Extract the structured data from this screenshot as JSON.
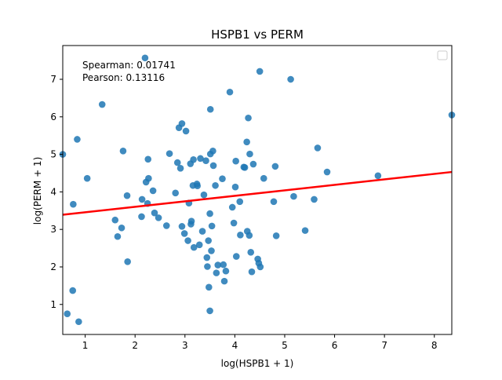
{
  "chart_data": {
    "type": "scatter",
    "title": "HSPB1 vs PERM",
    "xlabel": "log(HSPB1 + 1)",
    "ylabel": "log(PERM + 1)",
    "xlim": [
      0.55,
      8.35
    ],
    "ylim": [
      0.2,
      7.9
    ],
    "xticks": [
      1,
      2,
      3,
      4,
      5,
      6,
      7,
      8
    ],
    "yticks": [
      1,
      2,
      3,
      4,
      5,
      6,
      7
    ],
    "grid": false,
    "legend": "top-right, empty",
    "point_color": "#1f77b4",
    "fit_line_color": "#ff0000",
    "annotations": [
      "Spearman: 0.01741",
      "Pearson: 0.13116"
    ],
    "regression": {
      "x": [
        0.55,
        8.35
      ],
      "y": [
        3.39,
        4.53
      ]
    },
    "points": [
      {
        "x": 0.55,
        "y": 5.0
      },
      {
        "x": 0.64,
        "y": 0.75
      },
      {
        "x": 0.75,
        "y": 1.37
      },
      {
        "x": 0.76,
        "y": 3.67
      },
      {
        "x": 0.84,
        "y": 5.4
      },
      {
        "x": 0.87,
        "y": 0.54
      },
      {
        "x": 1.04,
        "y": 4.36
      },
      {
        "x": 1.34,
        "y": 6.33
      },
      {
        "x": 1.6,
        "y": 3.25
      },
      {
        "x": 1.65,
        "y": 2.81
      },
      {
        "x": 1.73,
        "y": 3.04
      },
      {
        "x": 1.76,
        "y": 5.09
      },
      {
        "x": 1.84,
        "y": 3.9
      },
      {
        "x": 1.85,
        "y": 2.14
      },
      {
        "x": 2.13,
        "y": 3.34
      },
      {
        "x": 2.14,
        "y": 3.8
      },
      {
        "x": 2.2,
        "y": 7.57
      },
      {
        "x": 2.22,
        "y": 4.26
      },
      {
        "x": 2.25,
        "y": 3.69
      },
      {
        "x": 2.26,
        "y": 4.87
      },
      {
        "x": 2.27,
        "y": 4.36
      },
      {
        "x": 2.36,
        "y": 4.03
      },
      {
        "x": 2.39,
        "y": 3.44
      },
      {
        "x": 2.47,
        "y": 3.31
      },
      {
        "x": 2.63,
        "y": 3.1
      },
      {
        "x": 2.69,
        "y": 5.02
      },
      {
        "x": 2.81,
        "y": 3.97
      },
      {
        "x": 2.85,
        "y": 4.78
      },
      {
        "x": 2.88,
        "y": 5.71
      },
      {
        "x": 2.91,
        "y": 4.63
      },
      {
        "x": 2.94,
        "y": 5.82
      },
      {
        "x": 2.94,
        "y": 3.08
      },
      {
        "x": 2.99,
        "y": 2.89
      },
      {
        "x": 3.02,
        "y": 5.62
      },
      {
        "x": 3.06,
        "y": 2.7
      },
      {
        "x": 3.08,
        "y": 3.7
      },
      {
        "x": 3.11,
        "y": 4.75
      },
      {
        "x": 3.12,
        "y": 3.14
      },
      {
        "x": 3.13,
        "y": 3.22
      },
      {
        "x": 3.16,
        "y": 4.17
      },
      {
        "x": 3.17,
        "y": 4.86
      },
      {
        "x": 3.18,
        "y": 2.52
      },
      {
        "x": 3.24,
        "y": 4.21
      },
      {
        "x": 3.25,
        "y": 4.16
      },
      {
        "x": 3.29,
        "y": 2.59
      },
      {
        "x": 3.31,
        "y": 4.89
      },
      {
        "x": 3.35,
        "y": 2.95
      },
      {
        "x": 3.38,
        "y": 3.92
      },
      {
        "x": 3.42,
        "y": 4.83
      },
      {
        "x": 3.44,
        "y": 2.25
      },
      {
        "x": 3.45,
        "y": 2.01
      },
      {
        "x": 3.47,
        "y": 2.7
      },
      {
        "x": 3.48,
        "y": 1.46
      },
      {
        "x": 3.5,
        "y": 0.83
      },
      {
        "x": 3.5,
        "y": 3.42
      },
      {
        "x": 3.51,
        "y": 6.2
      },
      {
        "x": 3.51,
        "y": 5.01
      },
      {
        "x": 3.53,
        "y": 2.43
      },
      {
        "x": 3.54,
        "y": 3.09
      },
      {
        "x": 3.56,
        "y": 5.09
      },
      {
        "x": 3.57,
        "y": 4.7
      },
      {
        "x": 3.61,
        "y": 4.17
      },
      {
        "x": 3.63,
        "y": 1.84
      },
      {
        "x": 3.66,
        "y": 2.05
      },
      {
        "x": 3.75,
        "y": 4.35
      },
      {
        "x": 3.77,
        "y": 2.06
      },
      {
        "x": 3.79,
        "y": 1.62
      },
      {
        "x": 3.82,
        "y": 1.89
      },
      {
        "x": 3.9,
        "y": 6.66
      },
      {
        "x": 3.95,
        "y": 3.59
      },
      {
        "x": 3.98,
        "y": 3.17
      },
      {
        "x": 4.01,
        "y": 4.13
      },
      {
        "x": 4.02,
        "y": 4.82
      },
      {
        "x": 4.03,
        "y": 2.28
      },
      {
        "x": 4.1,
        "y": 3.74
      },
      {
        "x": 4.11,
        "y": 2.85
      },
      {
        "x": 4.18,
        "y": 4.66
      },
      {
        "x": 4.2,
        "y": 4.65
      },
      {
        "x": 4.24,
        "y": 5.33
      },
      {
        "x": 4.25,
        "y": 2.95
      },
      {
        "x": 4.27,
        "y": 5.97
      },
      {
        "x": 4.29,
        "y": 2.84
      },
      {
        "x": 4.3,
        "y": 5.01
      },
      {
        "x": 4.32,
        "y": 2.39
      },
      {
        "x": 4.34,
        "y": 1.87
      },
      {
        "x": 4.37,
        "y": 4.74
      },
      {
        "x": 4.46,
        "y": 2.21
      },
      {
        "x": 4.48,
        "y": 2.1
      },
      {
        "x": 4.5,
        "y": 7.21
      },
      {
        "x": 4.51,
        "y": 2.0
      },
      {
        "x": 4.58,
        "y": 4.36
      },
      {
        "x": 4.78,
        "y": 3.74
      },
      {
        "x": 4.81,
        "y": 4.68
      },
      {
        "x": 4.83,
        "y": 2.83
      },
      {
        "x": 5.12,
        "y": 7.0
      },
      {
        "x": 5.18,
        "y": 3.88
      },
      {
        "x": 5.41,
        "y": 2.97
      },
      {
        "x": 5.59,
        "y": 3.8
      },
      {
        "x": 5.66,
        "y": 5.17
      },
      {
        "x": 5.85,
        "y": 4.53
      },
      {
        "x": 6.87,
        "y": 4.43
      },
      {
        "x": 8.35,
        "y": 6.05
      }
    ]
  }
}
